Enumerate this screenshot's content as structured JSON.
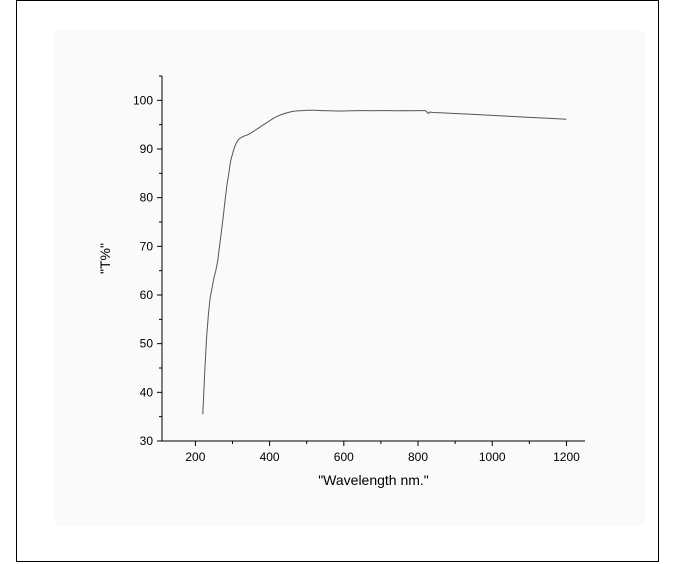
{
  "chart_data": {
    "type": "line",
    "xlabel": "\"Wavelength nm.\"",
    "ylabel": "\"T%\"",
    "xlim": [
      110,
      1250
    ],
    "ylim": [
      30,
      105
    ],
    "xticks": [
      200,
      400,
      600,
      800,
      1000,
      1200
    ],
    "yticks": [
      30,
      40,
      50,
      60,
      70,
      80,
      90,
      100
    ],
    "grid": false,
    "series": [
      {
        "x": [
          220,
          225,
          230,
          235,
          240,
          245,
          250,
          255,
          260,
          265,
          270,
          275,
          280,
          285,
          290,
          295,
          300,
          305,
          310,
          315,
          320,
          330,
          340,
          350,
          360,
          370,
          380,
          390,
          400,
          410,
          420,
          430,
          440,
          450,
          460,
          470,
          480,
          490,
          500,
          520,
          540,
          560,
          580,
          600,
          620,
          640,
          660,
          680,
          700,
          720,
          740,
          760,
          780,
          800,
          820,
          828,
          832,
          840,
          860,
          900,
          950,
          1000,
          1050,
          1100,
          1150,
          1200
        ],
        "y": [
          35.5,
          44,
          51,
          56,
          59.5,
          61.5,
          63.5,
          65,
          67,
          70,
          73,
          76,
          79.5,
          82.5,
          85,
          87.5,
          89,
          90.3,
          91.2,
          91.8,
          92.2,
          92.6,
          92.9,
          93.3,
          93.8,
          94.3,
          94.8,
          95.3,
          95.8,
          96.3,
          96.7,
          97.0,
          97.3,
          97.5,
          97.7,
          97.8,
          97.85,
          97.9,
          97.95,
          97.95,
          97.9,
          97.85,
          97.8,
          97.8,
          97.85,
          97.9,
          97.9,
          97.85,
          97.9,
          97.9,
          97.85,
          97.9,
          97.85,
          97.9,
          97.9,
          97.3,
          97.6,
          97.5,
          97.45,
          97.3,
          97.1,
          96.9,
          96.7,
          96.5,
          96.3,
          96.1
        ]
      }
    ]
  }
}
